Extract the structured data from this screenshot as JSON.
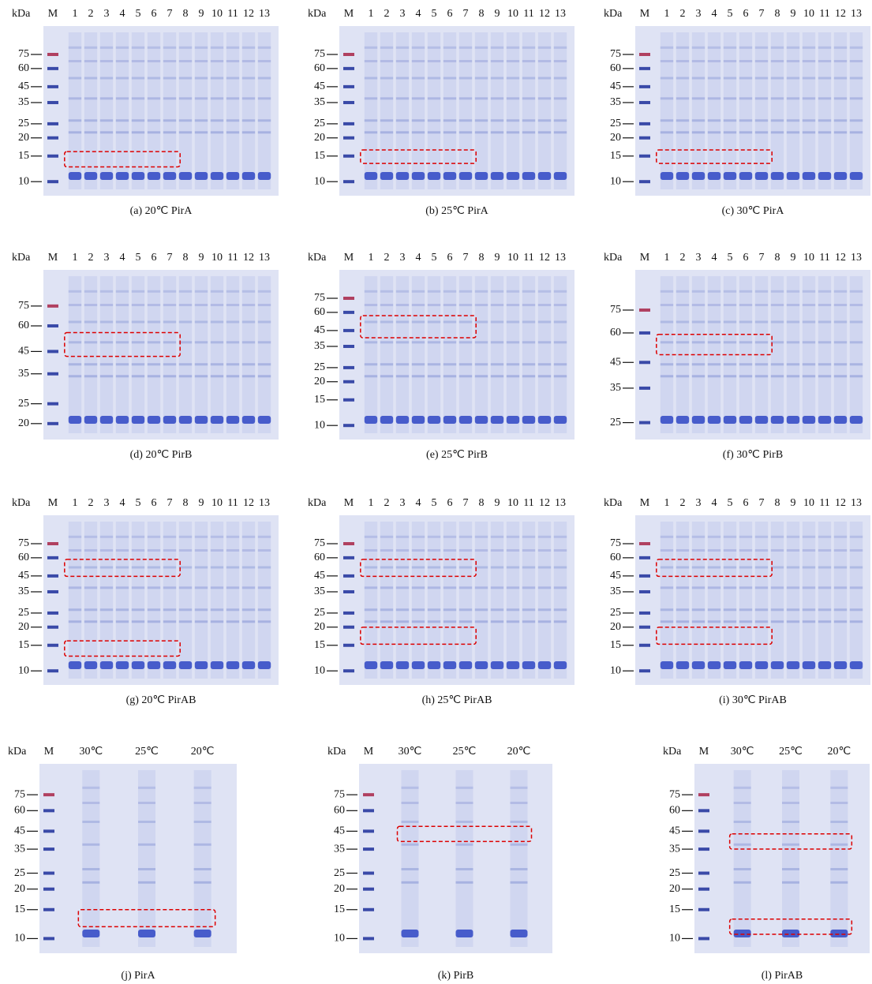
{
  "panels": [
    {
      "unit": "kDa",
      "lanes": [
        "M",
        "1",
        "2",
        "3",
        "4",
        "5",
        "6",
        "7",
        "8",
        "9",
        "10",
        "11",
        "12",
        "13"
      ],
      "markers": [
        75,
        60,
        45,
        35,
        25,
        20,
        15,
        10
      ],
      "caption": "(a) 20℃ PirA"
    },
    {
      "unit": "kDa",
      "lanes": [
        "M",
        "1",
        "2",
        "3",
        "4",
        "5",
        "6",
        "7",
        "8",
        "9",
        "10",
        "11",
        "12",
        "13"
      ],
      "markers": [
        75,
        60,
        45,
        35,
        25,
        20,
        15,
        10
      ],
      "caption": "(b) 25℃ PirA"
    },
    {
      "unit": "kDa",
      "lanes": [
        "M",
        "1",
        "2",
        "3",
        "4",
        "5",
        "6",
        "7",
        "8",
        "9",
        "10",
        "11",
        "12",
        "13"
      ],
      "markers": [
        75,
        60,
        45,
        35,
        25,
        20,
        15,
        10
      ],
      "caption": "(c) 30℃ PirA"
    },
    {
      "unit": "kDa",
      "lanes": [
        "M",
        "1",
        "2",
        "3",
        "4",
        "5",
        "6",
        "7",
        "8",
        "9",
        "10",
        "11",
        "12",
        "13"
      ],
      "markers": [
        75,
        60,
        45,
        35,
        25,
        20
      ],
      "caption": "(d) 20℃ PirB"
    },
    {
      "unit": "kDa",
      "lanes": [
        "M",
        "1",
        "2",
        "3",
        "4",
        "5",
        "6",
        "7",
        "8",
        "9",
        "10",
        "11",
        "12",
        "13"
      ],
      "markers": [
        75,
        60,
        45,
        35,
        25,
        20,
        15,
        10
      ],
      "caption": "(e) 25℃ PirB"
    },
    {
      "unit": "kDa",
      "lanes": [
        "M",
        "1",
        "2",
        "3",
        "4",
        "5",
        "6",
        "7",
        "8",
        "9",
        "10",
        "11",
        "12",
        "13"
      ],
      "markers": [
        75,
        60,
        45,
        35,
        25
      ],
      "caption": "(f) 30℃ PirB"
    },
    {
      "unit": "kDa",
      "lanes": [
        "M",
        "1",
        "2",
        "3",
        "4",
        "5",
        "6",
        "7",
        "8",
        "9",
        "10",
        "11",
        "12",
        "13"
      ],
      "markers": [
        75,
        60,
        45,
        35,
        25,
        20,
        15,
        10
      ],
      "caption": "(g) 20℃ PirAB"
    },
    {
      "unit": "kDa",
      "lanes": [
        "M",
        "1",
        "2",
        "3",
        "4",
        "5",
        "6",
        "7",
        "8",
        "9",
        "10",
        "11",
        "12",
        "13"
      ],
      "markers": [
        75,
        60,
        45,
        35,
        25,
        20,
        15,
        10
      ],
      "caption": "(h) 25℃ PirAB"
    },
    {
      "unit": "kDa",
      "lanes": [
        "M",
        "1",
        "2",
        "3",
        "4",
        "5",
        "6",
        "7",
        "8",
        "9",
        "10",
        "11",
        "12",
        "13"
      ],
      "markers": [
        75,
        60,
        45,
        35,
        25,
        20,
        15,
        10
      ],
      "caption": "(i) 30℃ PirAB"
    },
    {
      "unit": "kDa",
      "lanes": [
        "M",
        "30℃",
        "25℃",
        "20℃"
      ],
      "markers": [
        75,
        60,
        45,
        35,
        25,
        20,
        15,
        10
      ],
      "caption": "(j) PirA"
    },
    {
      "unit": "kDa",
      "lanes": [
        "M",
        "30℃",
        "25℃",
        "20℃"
      ],
      "markers": [
        75,
        60,
        45,
        35,
        25,
        20,
        15,
        10
      ],
      "caption": "(k) PirB"
    },
    {
      "unit": "kDa",
      "lanes": [
        "M",
        "30℃",
        "25℃",
        "20℃"
      ],
      "markers": [
        75,
        60,
        45,
        35,
        25,
        20,
        15,
        10
      ],
      "caption": "(l) PirAB"
    }
  ]
}
